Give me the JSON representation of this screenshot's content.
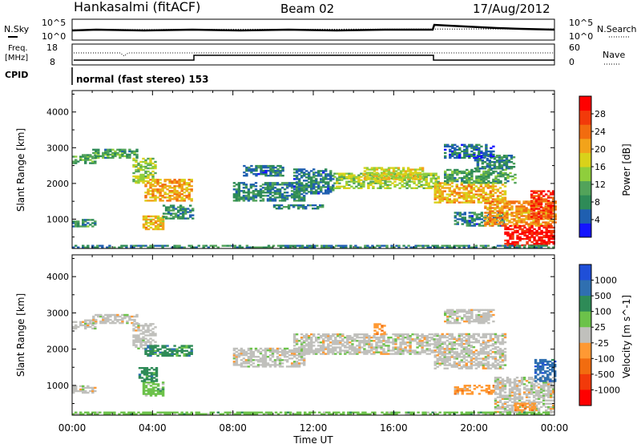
{
  "header": {
    "station": "Hankasalmi (fitACF)",
    "beam": "Beam 02",
    "date": "17/Aug/2012"
  },
  "noise_panel": {
    "left_label": "N.Sky",
    "right_label": "N.Search",
    "left_ticks": [
      "10^5",
      "10^0"
    ],
    "right_ticks": [
      "10^5",
      "10^0"
    ]
  },
  "freq_panel": {
    "left_label_1": "Freq.",
    "left_label_2": "[MHz]",
    "right_label": "Nave",
    "left_ticks": [
      "18",
      "8"
    ],
    "right_ticks": [
      "60",
      "0"
    ]
  },
  "cpid": {
    "label": "CPID",
    "text": "normal (fast stereo) 153"
  },
  "colors": {
    "power": [
      "#1414ff",
      "#1f5fb0",
      "#2e8b57",
      "#52a35a",
      "#8fce3c",
      "#d9d21a",
      "#f2a31a",
      "#f26c0f",
      "#f23a0a",
      "#ff0000"
    ],
    "velocity": [
      "#1f4fd8",
      "#2f6fb0",
      "#2e8b57",
      "#6cc24a",
      "#c0c0bc",
      "#ff9933",
      "#f26c0f",
      "#f23a0a",
      "#ff0000"
    ],
    "ground_scatter": "#bebebe"
  },
  "chart_data": [
    {
      "type": "heatmap",
      "panel": "power",
      "xlabel": "Time UT",
      "ylabel": "Slant Range [km]",
      "x_ticks": [
        "00:00",
        "04:00",
        "08:00",
        "12:00",
        "16:00",
        "20:00",
        "00:00"
      ],
      "xlim_hours": [
        0,
        24
      ],
      "y_ticks": [
        1000,
        2000,
        3000,
        4000
      ],
      "ylim": [
        180,
        4600
      ],
      "colorbar_label": "Power [dB]",
      "colorbar_ticks": [
        4,
        8,
        12,
        16,
        20,
        24,
        28
      ],
      "colorbar_range": [
        0,
        32
      ],
      "regions": [
        {
          "t0": 0.0,
          "t1": 1.2,
          "r0": 2550,
          "r1": 2800,
          "val": 11
        },
        {
          "t0": 0.0,
          "t1": 1.1,
          "r0": 780,
          "r1": 1000,
          "val": 9
        },
        {
          "t0": 1.0,
          "t1": 3.2,
          "r0": 2700,
          "r1": 2950,
          "val": 10
        },
        {
          "t0": 3.0,
          "t1": 4.2,
          "r0": 2000,
          "r1": 2700,
          "val": 14
        },
        {
          "t0": 3.6,
          "t1": 5.9,
          "r0": 1500,
          "r1": 2100,
          "val": 21
        },
        {
          "t0": 3.5,
          "t1": 4.5,
          "r0": 700,
          "r1": 1100,
          "val": 19
        },
        {
          "t0": 4.5,
          "t1": 6.0,
          "r0": 1000,
          "r1": 1400,
          "val": 8
        },
        {
          "t0": 8.0,
          "t1": 11.5,
          "r0": 1500,
          "r1": 2000,
          "val": 8
        },
        {
          "t0": 8.5,
          "t1": 10.5,
          "r0": 2200,
          "r1": 2500,
          "val": 7
        },
        {
          "t0": 10.0,
          "t1": 12.5,
          "r0": 1280,
          "r1": 1380,
          "val": 7
        },
        {
          "t0": 11.0,
          "t1": 13.0,
          "r0": 1700,
          "r1": 2400,
          "val": 7
        },
        {
          "t0": 13.0,
          "t1": 18.2,
          "r0": 1850,
          "r1": 2300,
          "val": 15
        },
        {
          "t0": 14.5,
          "t1": 17.5,
          "r0": 2100,
          "r1": 2450,
          "val": 17
        },
        {
          "t0": 18.0,
          "t1": 21.5,
          "r0": 1450,
          "r1": 2000,
          "val": 20
        },
        {
          "t0": 18.5,
          "t1": 22.0,
          "r0": 2000,
          "r1": 2400,
          "val": 10
        },
        {
          "t0": 20.0,
          "t1": 22.0,
          "r0": 2400,
          "r1": 2800,
          "val": 8
        },
        {
          "t0": 18.5,
          "t1": 21.0,
          "r0": 2700,
          "r1": 3100,
          "val": 6
        },
        {
          "t0": 19.0,
          "t1": 21.5,
          "r0": 800,
          "r1": 1200,
          "val": 7
        },
        {
          "t0": 20.5,
          "t1": 24.0,
          "r0": 800,
          "r1": 1500,
          "val": 22
        },
        {
          "t0": 21.5,
          "t1": 24.0,
          "r0": 250,
          "r1": 800,
          "val": 30
        },
        {
          "t0": 22.8,
          "t1": 24.0,
          "r0": 1000,
          "r1": 1800,
          "val": 27
        },
        {
          "t0": 0.0,
          "t1": 24.0,
          "r0": 190,
          "r1": 260,
          "val": 8
        }
      ]
    },
    {
      "type": "heatmap",
      "panel": "velocity",
      "xlabel": "Time UT",
      "ylabel": "Slant Range [km]",
      "x_ticks": [
        "00:00",
        "04:00",
        "08:00",
        "12:00",
        "16:00",
        "20:00",
        "00:00"
      ],
      "xlim_hours": [
        0,
        24
      ],
      "y_ticks": [
        1000,
        2000,
        3000,
        4000
      ],
      "ylim": [
        180,
        4600
      ],
      "colorbar_label": "Velocity [m s^-1]",
      "colorbar_ticks": [
        "1000",
        "500",
        "100",
        "25",
        "-25",
        "-100",
        "-500",
        "-1000"
      ],
      "regions": [
        {
          "t0": 0.0,
          "t1": 1.2,
          "r0": 2550,
          "r1": 2800,
          "cat": 4
        },
        {
          "t0": 0.0,
          "t1": 1.1,
          "r0": 780,
          "r1": 1000,
          "cat": 4
        },
        {
          "t0": 1.0,
          "t1": 3.2,
          "r0": 2700,
          "r1": 2950,
          "cat": 4
        },
        {
          "t0": 3.0,
          "t1": 4.2,
          "r0": 2000,
          "r1": 2700,
          "cat": 4
        },
        {
          "t0": 3.6,
          "t1": 5.9,
          "r0": 1800,
          "r1": 2100,
          "cat": 2
        },
        {
          "t0": 3.5,
          "t1": 4.5,
          "r0": 700,
          "r1": 1100,
          "cat": 3
        },
        {
          "t0": 3.3,
          "t1": 4.2,
          "r0": 1100,
          "r1": 1500,
          "cat": 2
        },
        {
          "t0": 8.0,
          "t1": 11.5,
          "r0": 1500,
          "r1": 2000,
          "cat": 4
        },
        {
          "t0": 11.0,
          "t1": 18.2,
          "r0": 1850,
          "r1": 2400,
          "cat": 4
        },
        {
          "t0": 15.0,
          "t1": 15.5,
          "r0": 2400,
          "r1": 2700,
          "cat": 5
        },
        {
          "t0": 18.0,
          "t1": 21.5,
          "r0": 1450,
          "r1": 2400,
          "cat": 4
        },
        {
          "t0": 18.5,
          "t1": 21.0,
          "r0": 2700,
          "r1": 3100,
          "cat": 4
        },
        {
          "t0": 19.0,
          "t1": 21.0,
          "r0": 750,
          "r1": 1000,
          "cat": 5
        },
        {
          "t0": 21.0,
          "t1": 24.0,
          "r0": 250,
          "r1": 1200,
          "cat": 4
        },
        {
          "t0": 23.0,
          "t1": 24.0,
          "r0": 1100,
          "r1": 1700,
          "cat": 1
        },
        {
          "t0": 22.0,
          "t1": 23.0,
          "r0": 300,
          "r1": 500,
          "cat": 5
        },
        {
          "t0": 0.0,
          "t1": 24.0,
          "r0": 190,
          "r1": 260,
          "cat": 3
        }
      ]
    }
  ]
}
